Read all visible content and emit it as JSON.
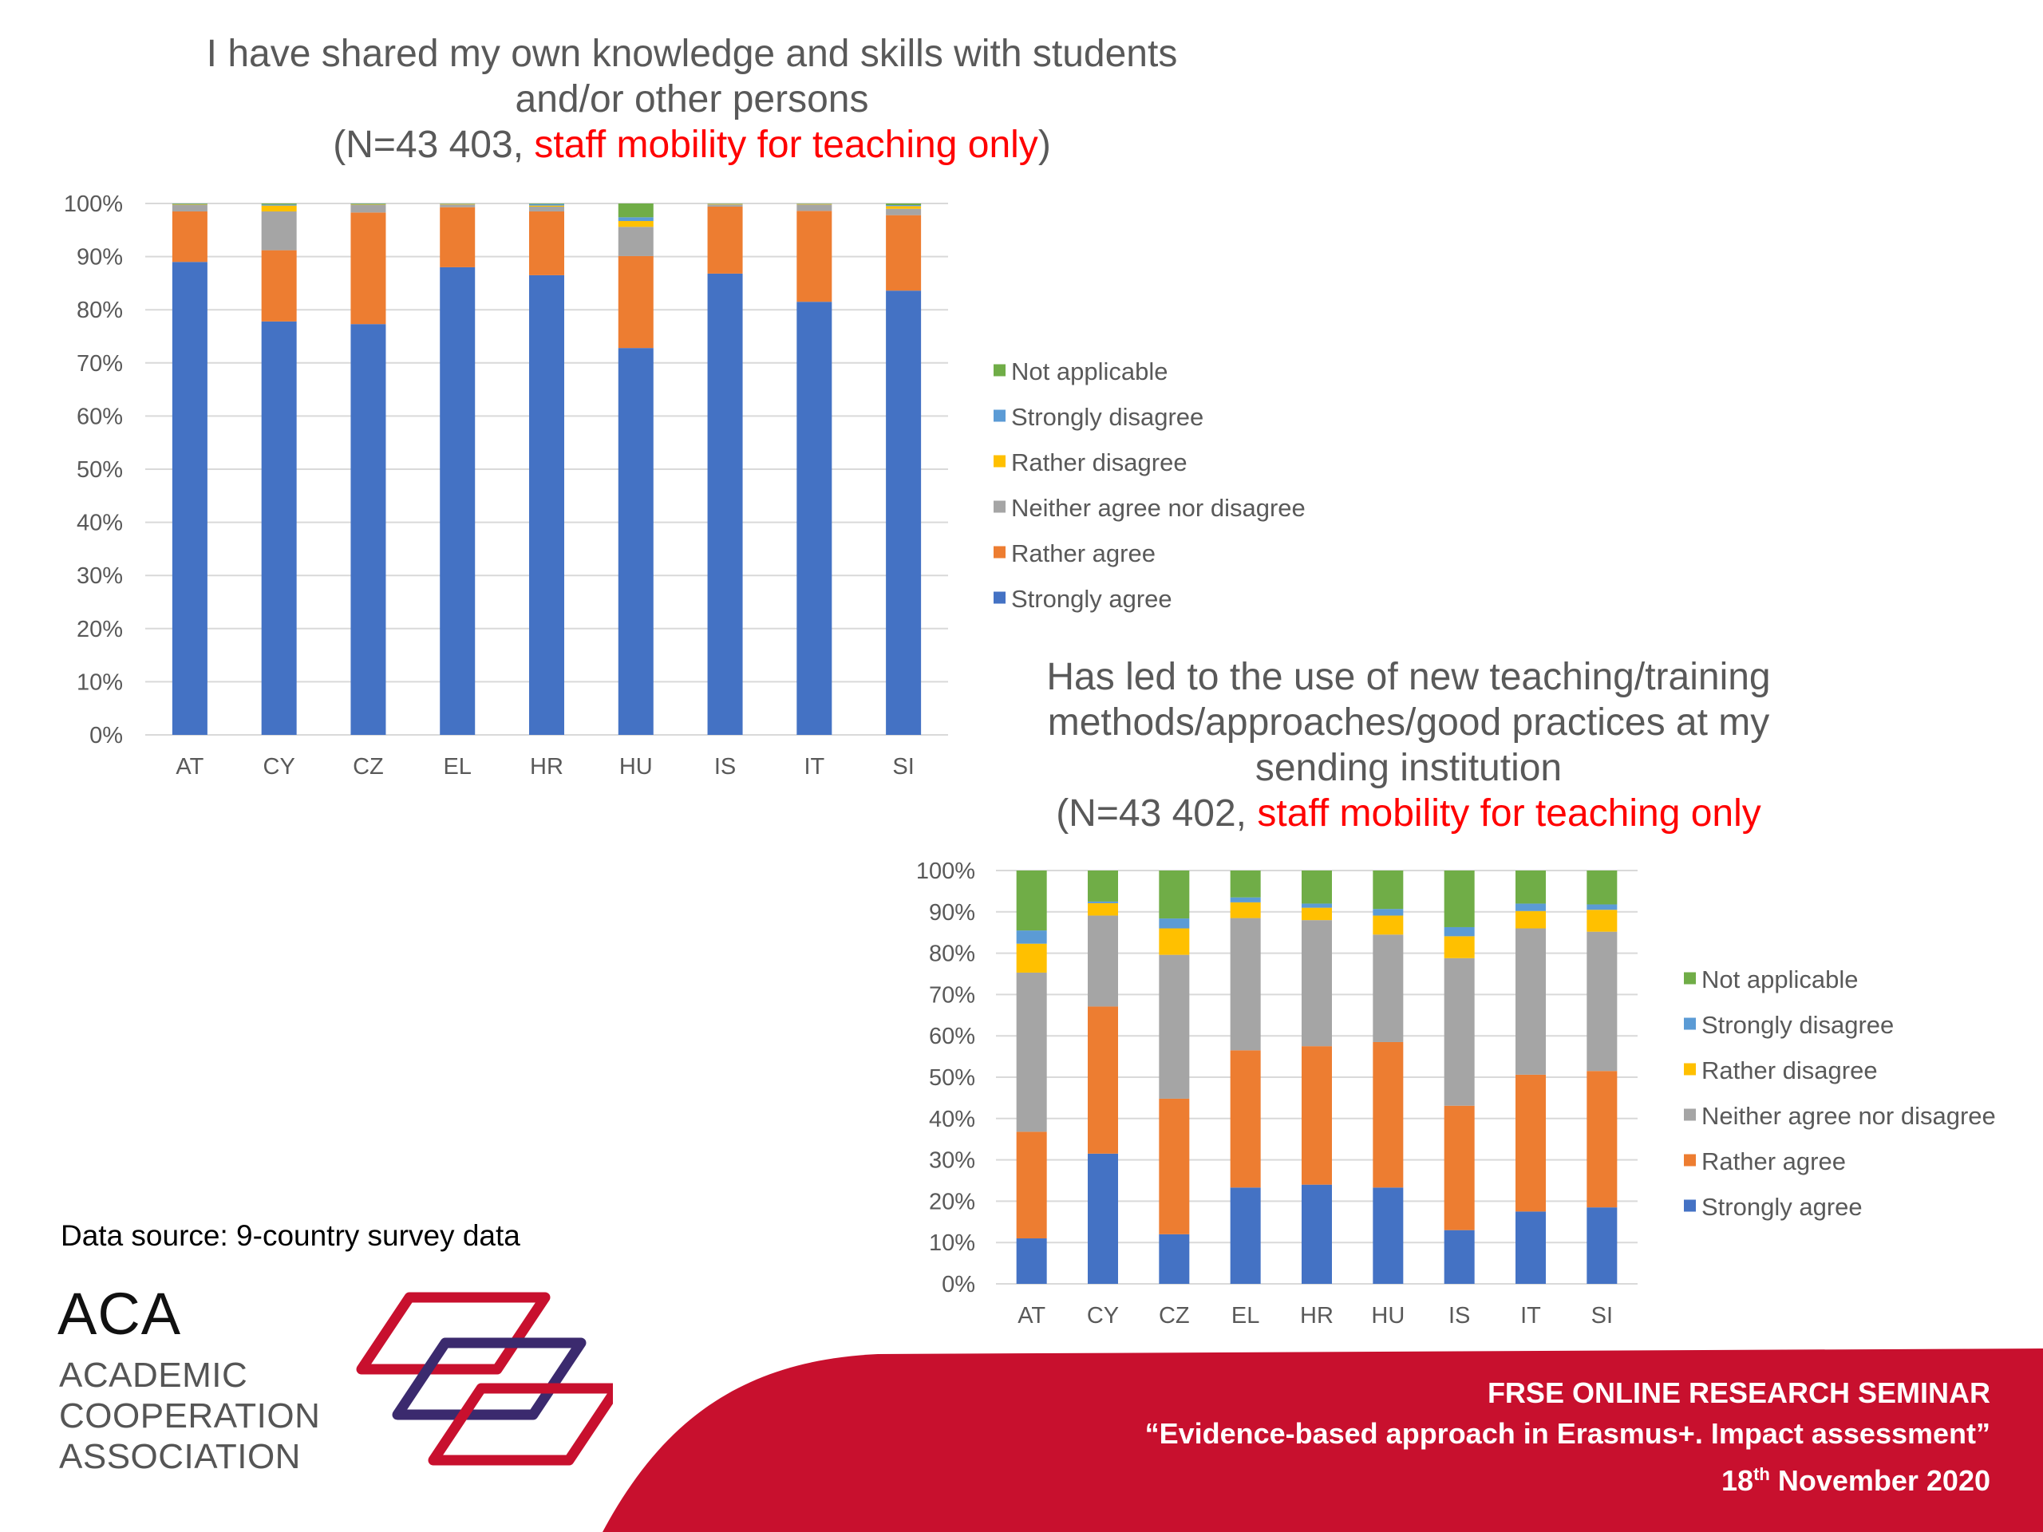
{
  "colors": {
    "strongly_agree": "#4472C4",
    "rather_agree": "#ED7D31",
    "neither": "#A5A5A5",
    "rather_disagree": "#FFC000",
    "strongly_disagree": "#5B9BD5",
    "not_applicable": "#70AD47",
    "highlight": "#FF0000",
    "banner": "#C8102E",
    "logo_red": "#C8102E",
    "logo_purple": "#3B2A6E"
  },
  "chart_data": [
    {
      "type": "bar",
      "stacked": true,
      "title_lines": [
        "I have shared my own knowledge and skills with students",
        "and/or other persons"
      ],
      "subtitle_prefix": "(N=43 403, ",
      "subtitle_highlight": "staff mobility for teaching only",
      "subtitle_suffix": ")",
      "categories": [
        "AT",
        "CY",
        "CZ",
        "EL",
        "HR",
        "HU",
        "IS",
        "IT",
        "SI"
      ],
      "yticks": [
        "0%",
        "10%",
        "20%",
        "30%",
        "40%",
        "50%",
        "60%",
        "70%",
        "80%",
        "90%",
        "100%"
      ],
      "ylim": [
        0,
        100
      ],
      "grid": true,
      "legend_position": "right",
      "series": [
        {
          "name": "Strongly agree",
          "color": "#4472C4",
          "values": [
            89,
            77.8,
            77.3,
            88,
            86.5,
            72.8,
            86.8,
            81.5,
            83.6
          ]
        },
        {
          "name": "Rather agree",
          "color": "#ED7D31",
          "values": [
            9.5,
            13.4,
            21,
            11.3,
            12,
            17.3,
            12.6,
            17.1,
            14.2
          ]
        },
        {
          "name": "Neither agree nor disagree",
          "color": "#A5A5A5",
          "values": [
            1.2,
            7.3,
            1.4,
            0.5,
            0.9,
            5.5,
            0.4,
            1.2,
            1.2
          ]
        },
        {
          "name": "Rather disagree",
          "color": "#FFC000",
          "values": [
            0.1,
            1.1,
            0.1,
            0.1,
            0.2,
            1.1,
            0.1,
            0.1,
            0.5
          ]
        },
        {
          "name": "Strongly disagree",
          "color": "#5B9BD5",
          "values": [
            0.1,
            0.2,
            0.1,
            0.05,
            0.3,
            0.7,
            0.05,
            0.05,
            0.2
          ]
        },
        {
          "name": "Not applicable",
          "color": "#70AD47",
          "values": [
            0.1,
            0.2,
            0.1,
            0.05,
            0.1,
            2.6,
            0.05,
            0.05,
            0.3
          ]
        }
      ]
    },
    {
      "type": "bar",
      "stacked": true,
      "title_lines": [
        "Has led to the use of new teaching/training",
        "methods/approaches/good practices at my",
        "sending institution"
      ],
      "subtitle_prefix": "(N=43 402, ",
      "subtitle_highlight": "staff mobility for teaching only",
      "subtitle_suffix": "",
      "categories": [
        "AT",
        "CY",
        "CZ",
        "EL",
        "HR",
        "HU",
        "IS",
        "IT",
        "SI"
      ],
      "yticks": [
        "0%",
        "10%",
        "20%",
        "30%",
        "40%",
        "50%",
        "60%",
        "70%",
        "80%",
        "90%",
        "100%"
      ],
      "ylim": [
        0,
        100
      ],
      "grid": true,
      "legend_position": "right",
      "series": [
        {
          "name": "Strongly agree",
          "color": "#4472C4",
          "values": [
            11,
            31.5,
            12,
            23.3,
            24,
            23.3,
            13,
            17.5,
            18.5
          ]
        },
        {
          "name": "Rather agree",
          "color": "#ED7D31",
          "values": [
            25.8,
            35.6,
            32.8,
            33.2,
            33.5,
            35.2,
            30.1,
            33.1,
            33
          ]
        },
        {
          "name": "Neither agree nor disagree",
          "color": "#A5A5A5",
          "values": [
            38.5,
            22,
            34.8,
            32,
            30.5,
            26,
            35.7,
            35.4,
            33.7
          ]
        },
        {
          "name": "Rather disagree",
          "color": "#FFC000",
          "values": [
            7,
            3,
            6.4,
            3.8,
            3,
            4.6,
            5.3,
            4.2,
            5.3
          ]
        },
        {
          "name": "Strongly disagree",
          "color": "#5B9BD5",
          "values": [
            3.2,
            0.4,
            2.4,
            1.2,
            1,
            1.6,
            2.2,
            1.8,
            1.3
          ]
        },
        {
          "name": "Not applicable",
          "color": "#70AD47",
          "values": [
            14.5,
            7.5,
            11.6,
            6.5,
            8,
            9.3,
            13.7,
            8,
            8.2
          ]
        }
      ]
    }
  ],
  "footer": {
    "data_source": "Data source: 9-country survey data",
    "logo_acronym": "ACA",
    "logo_line1": "ACADEMIC",
    "logo_line2": "COOPERATION",
    "logo_line3": "ASSOCIATION",
    "seminar_title": "FRSE ONLINE RESEARCH SEMINAR",
    "seminar_subtitle": "“Evidence-based approach in Erasmus+. Impact assessment”",
    "date_day": "18",
    "date_suffix": "th",
    "date_rest": " November 2020"
  }
}
